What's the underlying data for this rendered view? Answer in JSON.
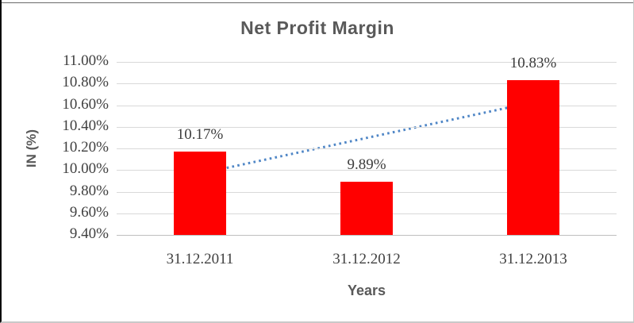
{
  "chart_data": {
    "type": "bar",
    "title": "Net Profit Margin",
    "xlabel": "Years",
    "ylabel": "IN (%)",
    "categories": [
      "31.12.2011",
      "31.12.2012",
      "31.12.2013"
    ],
    "series": [
      {
        "name": "Net Profit Margin",
        "values": [
          10.17,
          9.89,
          10.83
        ]
      }
    ],
    "data_labels": [
      "10.17%",
      "9.89%",
      "10.83%"
    ],
    "y_ticks": [
      {
        "label": "11.00%",
        "value": 11.0
      },
      {
        "label": "10.80%",
        "value": 10.8
      },
      {
        "label": "10.60%",
        "value": 10.6
      },
      {
        "label": "10.40%",
        "value": 10.4
      },
      {
        "label": "10.20%",
        "value": 10.2
      },
      {
        "label": "10.00%",
        "value": 10.0
      },
      {
        "label": "9.80%",
        "value": 9.8
      },
      {
        "label": "9.60%",
        "value": 9.6
      },
      {
        "label": "9.40%",
        "value": 9.4
      }
    ],
    "ylim": [
      9.4,
      11.0
    ],
    "grid": true,
    "legend": false,
    "colors": {
      "bar": "#ff0000",
      "trendline": "#4f86c6",
      "gridline": "#d9d9d9",
      "axis_line": "#bfbfbf",
      "title_text": "#595959",
      "tick_text": "#404040"
    },
    "trendline": {
      "type": "linear",
      "style": "dotted",
      "start_value": 9.967,
      "end_value": 10.627
    }
  }
}
